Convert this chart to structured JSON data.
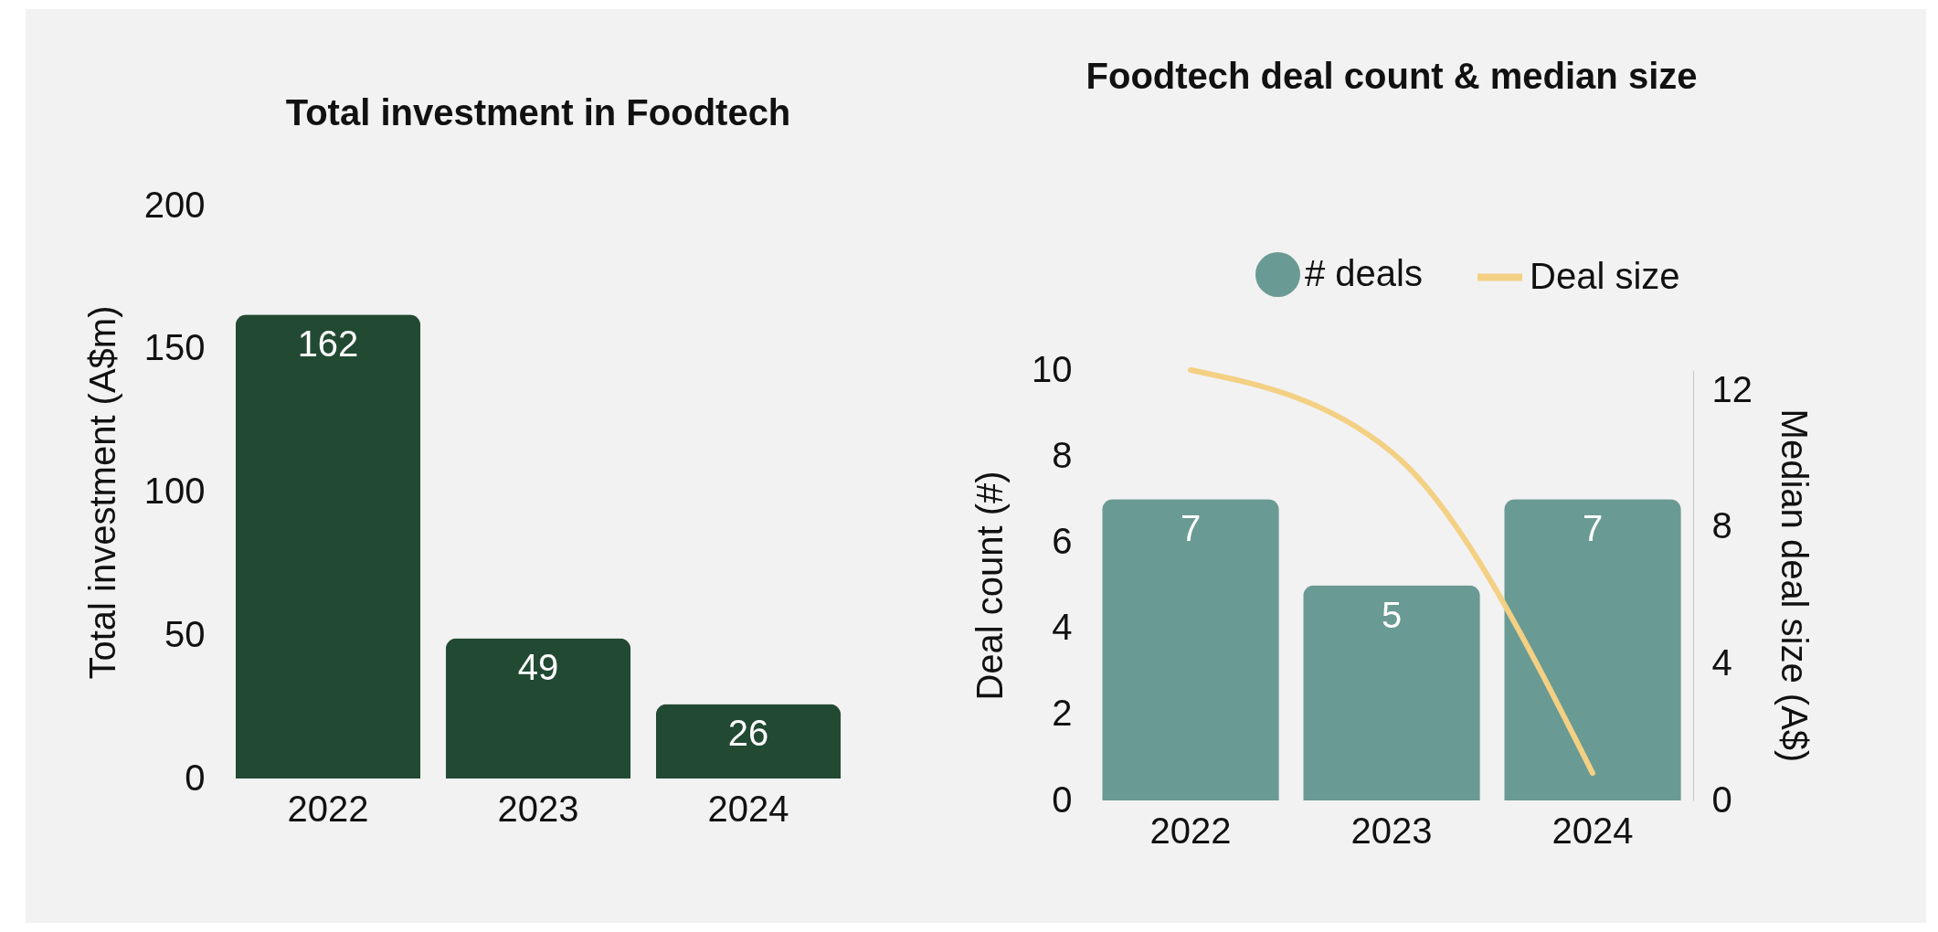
{
  "chart_data": [
    {
      "type": "bar",
      "title": "Total investment in Foodtech",
      "ylabel": "Total investment (A$m)",
      "categories": [
        "2022",
        "2023",
        "2024"
      ],
      "values": [
        162,
        49,
        26
      ],
      "color": "#224a33",
      "ylim": [
        0,
        200
      ],
      "yticks": [
        0,
        50,
        100,
        150,
        200
      ],
      "data_labels": true
    },
    {
      "type": "bar",
      "title": "Foodtech deal count & median size",
      "ylabel": "Deal count (#)",
      "y2label": "Median deal size (A$)",
      "categories": [
        "2022",
        "2023",
        "2024"
      ],
      "series": [
        {
          "name": "# deals",
          "color": "#6a9a94",
          "values": [
            7,
            5,
            7
          ],
          "value_labels": [
            "7",
            "5",
            "7"
          ]
        },
        {
          "name": "Deal size",
          "type": "line",
          "axis": "y2",
          "color": "#f3d083",
          "values": [
            12.6,
            10.2,
            0.8
          ]
        }
      ],
      "ylim": [
        0,
        10
      ],
      "yticks": [
        0,
        2,
        4,
        6,
        8,
        10
      ],
      "y2lim": [
        0,
        12.6
      ],
      "y2ticks": [
        0,
        4,
        8,
        12
      ],
      "legend": "top"
    }
  ]
}
